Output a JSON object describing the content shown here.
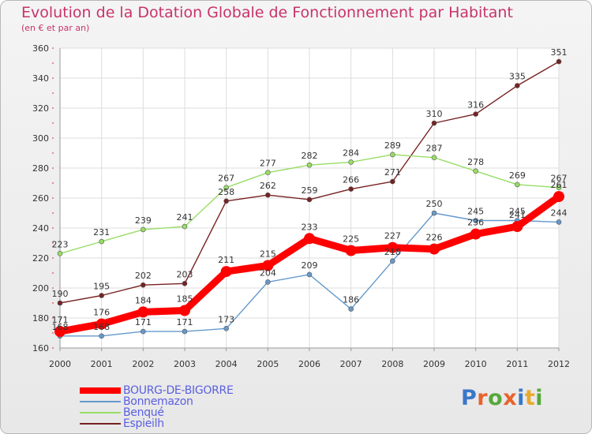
{
  "header": {
    "title": "Evolution de la Dotation Globale de Fonctionnement par Habitant",
    "subtitle": "(en € et par an)"
  },
  "logo": {
    "text": "Proxiti",
    "colors": [
      "#3a77c9",
      "#e8622c",
      "#57a83a",
      "#e8622c",
      "#3a77c9",
      "#e8a92c",
      "#57a83a"
    ]
  },
  "chart_data": {
    "type": "line",
    "title": "Evolution de la Dotation Globale de Fonctionnement par Habitant",
    "subtitle": "(en € et par an)",
    "x": [
      "2000",
      "2001",
      "2002",
      "2003",
      "2004",
      "2005",
      "2006",
      "2007",
      "2008",
      "2009",
      "2010",
      "2011",
      "2012"
    ],
    "ylim": [
      160,
      360
    ],
    "yticks": [
      160,
      180,
      200,
      220,
      240,
      260,
      280,
      300,
      320,
      340,
      360
    ],
    "grid": true,
    "legend_position": "bottom-left",
    "series": [
      {
        "name": "BOURG-DE-BIGORRE",
        "color": "#ff0000",
        "values": [
          171,
          176,
          184,
          185,
          211,
          215,
          233,
          225,
          227,
          226,
          236,
          241,
          261
        ]
      },
      {
        "name": "Bonnemazon",
        "color": "#6699cc",
        "values": [
          168,
          168,
          171,
          171,
          173,
          204,
          209,
          186,
          218,
          250,
          245,
          245,
          244
        ]
      },
      {
        "name": "Benqué",
        "color": "#99dd66",
        "values": [
          223,
          231,
          239,
          241,
          267,
          277,
          282,
          284,
          289,
          287,
          278,
          269,
          267
        ]
      },
      {
        "name": "Espieilh",
        "color": "#772222",
        "values": [
          190,
          195,
          202,
          203,
          258,
          262,
          259,
          266,
          271,
          310,
          316,
          335,
          351
        ]
      }
    ]
  }
}
